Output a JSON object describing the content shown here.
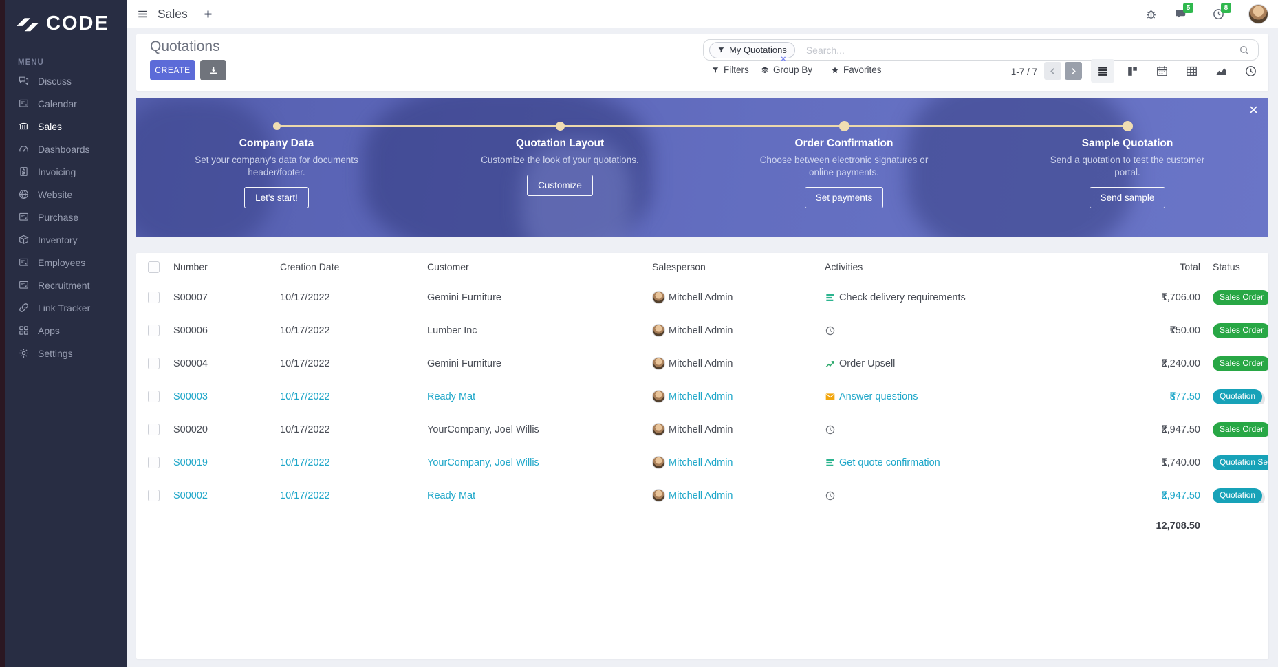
{
  "brand": {
    "name": "CODE"
  },
  "sidebar": {
    "menu_label": "MENU",
    "items": [
      {
        "label": "Discuss",
        "icon": "discuss",
        "active": false
      },
      {
        "label": "Calendar",
        "icon": "board",
        "active": false
      },
      {
        "label": "Sales",
        "icon": "sales",
        "active": true
      },
      {
        "label": "Dashboards",
        "icon": "dashboards",
        "active": false
      },
      {
        "label": "Invoicing",
        "icon": "invoicing",
        "active": false
      },
      {
        "label": "Website",
        "icon": "website",
        "active": false
      },
      {
        "label": "Purchase",
        "icon": "board",
        "active": false
      },
      {
        "label": "Inventory",
        "icon": "inventory",
        "active": false
      },
      {
        "label": "Employees",
        "icon": "board",
        "active": false
      },
      {
        "label": "Recruitment",
        "icon": "board",
        "active": false
      },
      {
        "label": "Link Tracker",
        "icon": "link",
        "active": false
      },
      {
        "label": "Apps",
        "icon": "apps",
        "active": false
      },
      {
        "label": "Settings",
        "icon": "settings",
        "active": false
      }
    ]
  },
  "topbar": {
    "app_name": "Sales",
    "messages_badge": "5",
    "activities_badge": "8"
  },
  "control": {
    "title": "Quotations",
    "create_label": "CREATE",
    "search": {
      "facet_label": "My Quotations",
      "facet_remove": "×",
      "placeholder": "Search..."
    },
    "filters_label": "Filters",
    "group_by_label": "Group By",
    "favorites_label": "Favorites",
    "pager": {
      "text": "1-7 / 7"
    },
    "views": [
      {
        "name": "list",
        "icon": "list-view",
        "active": true
      },
      {
        "name": "kanban",
        "icon": "kanban-view",
        "active": false
      },
      {
        "name": "calendar",
        "icon": "calendar-view",
        "active": false
      },
      {
        "name": "pivot",
        "icon": "pivot-view",
        "active": false
      },
      {
        "name": "graph",
        "icon": "graph-view",
        "active": false
      },
      {
        "name": "activity",
        "icon": "activity-view",
        "active": false
      }
    ]
  },
  "banner": {
    "close": "×",
    "steps": [
      {
        "title": "Company Data",
        "desc": "Set your company's data for documents header/footer.",
        "button": "Let's start!"
      },
      {
        "title": "Quotation Layout",
        "desc": "Customize the look of your quotations.",
        "button": "Customize"
      },
      {
        "title": "Order Confirmation",
        "desc": "Choose between electronic signatures or online payments.",
        "button": "Set payments"
      },
      {
        "title": "Sample Quotation",
        "desc": "Send a quotation to test the customer portal.",
        "button": "Send sample"
      }
    ]
  },
  "table": {
    "columns": {
      "number": "Number",
      "date": "Creation Date",
      "customer": "Customer",
      "salesperson": "Salesperson",
      "activities": "Activities",
      "total": "Total",
      "status": "Status"
    },
    "currency": "₹",
    "rows": [
      {
        "number": "S00007",
        "date": "10/17/2022",
        "customer": "Gemini Furniture",
        "salesperson": "Mitchell Admin",
        "activity": {
          "icon": "activity-list",
          "label": "Check delivery requirements"
        },
        "total": "1,706.00",
        "status": {
          "label": "Sales Order",
          "type": "success"
        },
        "highlight": false,
        "total_highlight": false
      },
      {
        "number": "S00006",
        "date": "10/17/2022",
        "customer": "Lumber Inc",
        "salesperson": "Mitchell Admin",
        "activity": {
          "icon": "clock",
          "label": ""
        },
        "total": "750.00",
        "status": {
          "label": "Sales Order",
          "type": "success"
        },
        "highlight": false,
        "total_highlight": false
      },
      {
        "number": "S00004",
        "date": "10/17/2022",
        "customer": "Gemini Furniture",
        "salesperson": "Mitchell Admin",
        "activity": {
          "icon": "activity-chart",
          "label": "Order Upsell"
        },
        "total": "2,240.00",
        "status": {
          "label": "Sales Order",
          "type": "success"
        },
        "highlight": false,
        "total_highlight": false
      },
      {
        "number": "S00003",
        "date": "10/17/2022",
        "customer": "Ready Mat",
        "salesperson": "Mitchell Admin",
        "activity": {
          "icon": "envelope",
          "label": "Answer questions"
        },
        "total": "377.50",
        "status": {
          "label": "Quotation",
          "type": "info"
        },
        "highlight": true,
        "total_highlight": true
      },
      {
        "number": "S00020",
        "date": "10/17/2022",
        "customer": "YourCompany, Joel Willis",
        "salesperson": "Mitchell Admin",
        "activity": {
          "icon": "clock",
          "label": ""
        },
        "total": "2,947.50",
        "status": {
          "label": "Sales Order",
          "type": "success"
        },
        "highlight": false,
        "total_highlight": false
      },
      {
        "number": "S00019",
        "date": "10/17/2022",
        "customer": "YourCompany, Joel Willis",
        "salesperson": "Mitchell Admin",
        "activity": {
          "icon": "activity-list",
          "label": "Get quote confirmation"
        },
        "total": "1,740.00",
        "status": {
          "label": "Quotation Sent",
          "type": "info"
        },
        "highlight": true,
        "total_highlight": false
      },
      {
        "number": "S00002",
        "date": "10/17/2022",
        "customer": "Ready Mat",
        "salesperson": "Mitchell Admin",
        "activity": {
          "icon": "clock",
          "label": ""
        },
        "total": "2,947.50",
        "status": {
          "label": "Quotation",
          "type": "info"
        },
        "highlight": true,
        "total_highlight": true
      }
    ],
    "sum_total": "12,708.50"
  },
  "colors": {
    "accent": "#5c6bd8",
    "success": "#28a745",
    "info": "#17a2b8",
    "highlight_text": "#1fa7c9",
    "sidebar_bg": "#282d43",
    "banner_overlay": "#5f69bd",
    "step_line": "#ecd9ab",
    "badge_green": "#2fb84e"
  }
}
